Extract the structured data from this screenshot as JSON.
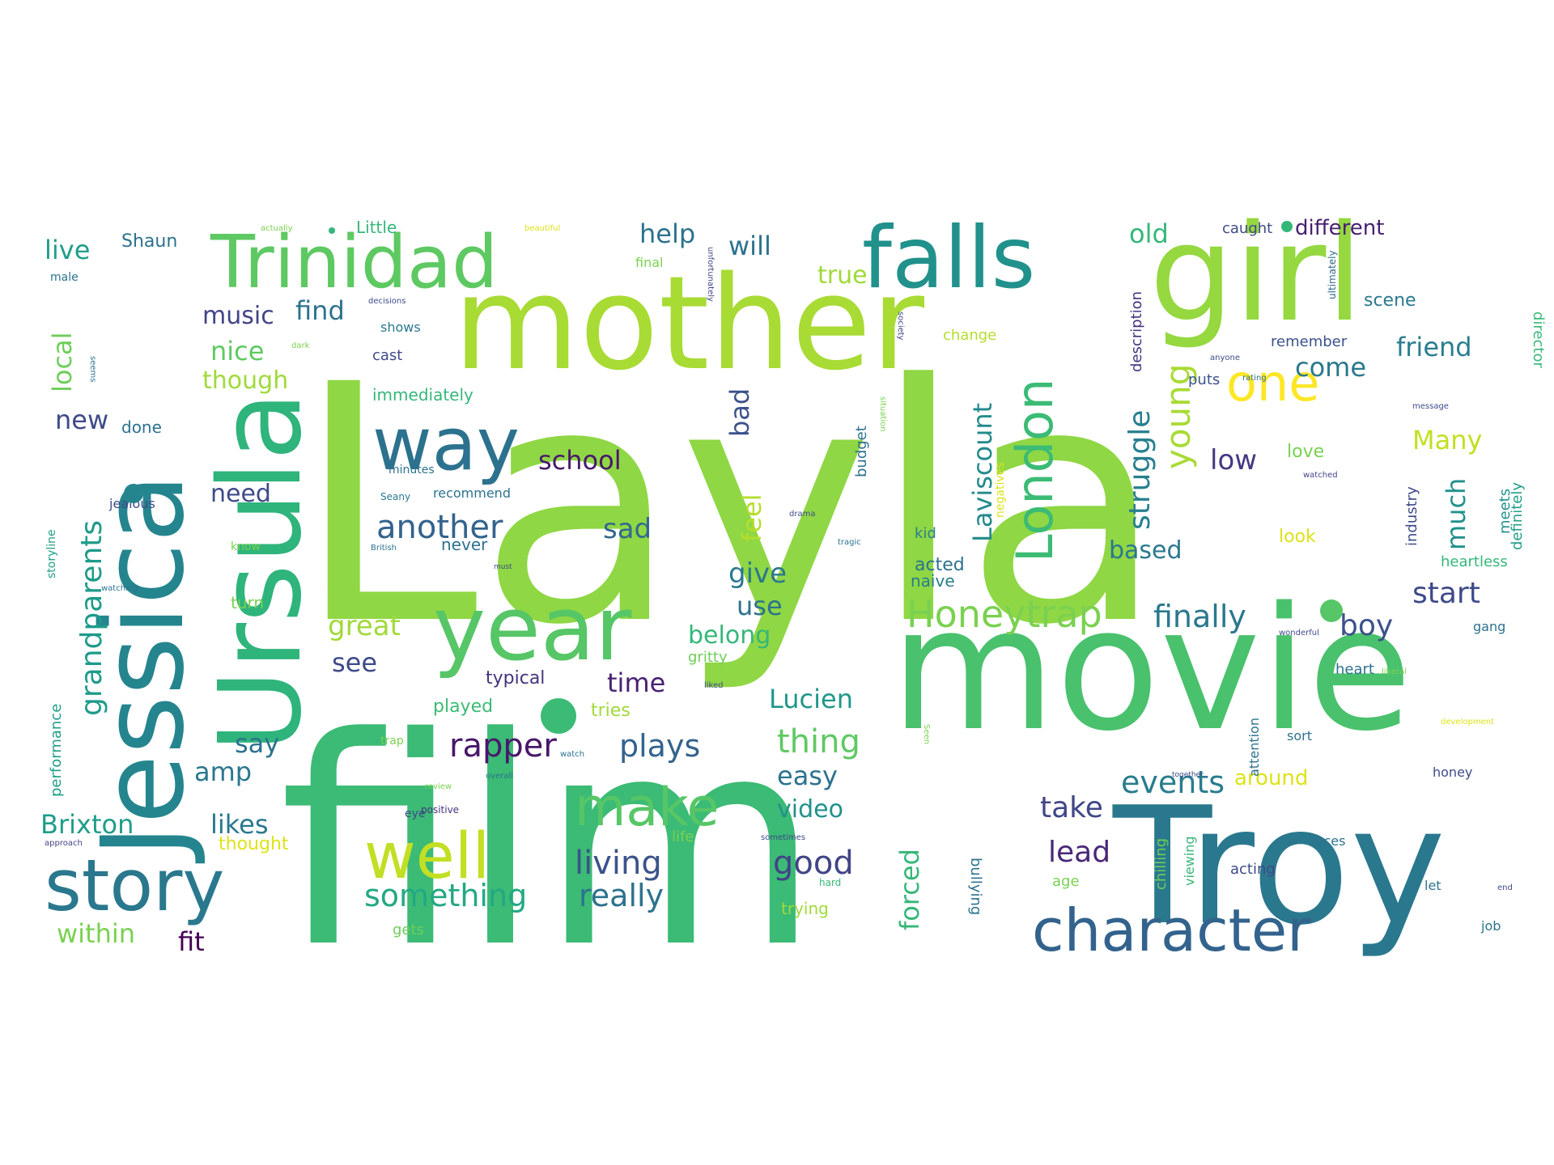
{
  "words": [
    {
      "text": "Layla",
      "color": "#8fd744"
    },
    {
      "text": "film",
      "color": "#3bbb75"
    },
    {
      "text": "movie",
      "color": "#4ac16d"
    },
    {
      "text": "mother",
      "color": "#a8db34"
    },
    {
      "text": "girl",
      "color": "#95d840"
    },
    {
      "text": "Jessica",
      "color": "#25858e"
    },
    {
      "text": "Troy",
      "color": "#2a788e"
    },
    {
      "text": "Ursula",
      "color": "#2fb47c"
    },
    {
      "text": "falls",
      "color": "#21918c"
    },
    {
      "text": "Trinidad",
      "color": "#5ec962"
    },
    {
      "text": "year",
      "color": "#56c667"
    },
    {
      "text": "way",
      "color": "#2c728e"
    },
    {
      "text": "story",
      "color": "#2a788e"
    },
    {
      "text": "character",
      "color": "#33638d"
    },
    {
      "text": "well",
      "color": "#c2df23"
    },
    {
      "text": "make",
      "color": "#56c667"
    },
    {
      "text": "one",
      "color": "#fde725"
    },
    {
      "text": "London",
      "color": "#3bbb75"
    },
    {
      "text": "Honeytrap",
      "color": "#7ad151"
    },
    {
      "text": "Laviscount",
      "color": "#238a8d"
    },
    {
      "text": "young",
      "color": "#a8db34"
    },
    {
      "text": "struggle",
      "color": "#277f8e"
    },
    {
      "text": "grandparents",
      "color": "#1e9b8a"
    },
    {
      "text": "another",
      "color": "#33638d"
    },
    {
      "text": "living",
      "color": "#3b528b"
    },
    {
      "text": "really",
      "color": "#2c728e"
    },
    {
      "text": "something",
      "color": "#22a884"
    },
    {
      "text": "rapper",
      "color": "#48186a"
    },
    {
      "text": "plays",
      "color": "#33638d"
    },
    {
      "text": "thing",
      "color": "#5ec962"
    },
    {
      "text": "events",
      "color": "#287d8e"
    },
    {
      "text": "good",
      "color": "#414487"
    },
    {
      "text": "finally",
      "color": "#2a788e"
    },
    {
      "text": "start",
      "color": "#3e4a89"
    },
    {
      "text": "boy",
      "color": "#3b528b"
    },
    {
      "text": "take",
      "color": "#404688"
    },
    {
      "text": "lead",
      "color": "#482878"
    },
    {
      "text": "Brixton",
      "color": "#1f9e89"
    },
    {
      "text": "likes",
      "color": "#2a788e"
    },
    {
      "text": "within",
      "color": "#7ad151"
    },
    {
      "text": "fit",
      "color": "#440154"
    },
    {
      "text": "amp",
      "color": "#2a788e"
    },
    {
      "text": "say",
      "color": "#2c728e"
    },
    {
      "text": "see",
      "color": "#3e4a89"
    },
    {
      "text": "great",
      "color": "#a0da39"
    },
    {
      "text": "time",
      "color": "#482173"
    },
    {
      "text": "Lucien",
      "color": "#1f988b"
    },
    {
      "text": "easy",
      "color": "#2c728e"
    },
    {
      "text": "video",
      "color": "#21918c"
    },
    {
      "text": "forced",
      "color": "#35b779"
    },
    {
      "text": "give",
      "color": "#2a788e"
    },
    {
      "text": "use",
      "color": "#2c728e"
    },
    {
      "text": "belong",
      "color": "#35b779"
    },
    {
      "text": "sad",
      "color": "#31688e"
    },
    {
      "text": "feel",
      "color": "#b5de2b"
    },
    {
      "text": "bad",
      "color": "#3b528b"
    },
    {
      "text": "need",
      "color": "#3e4a89"
    },
    {
      "text": "school",
      "color": "#48186a"
    },
    {
      "text": "new",
      "color": "#3e4a89"
    },
    {
      "text": "local",
      "color": "#6ece58"
    },
    {
      "text": "live",
      "color": "#1f9e89"
    },
    {
      "text": "music",
      "color": "#414487"
    },
    {
      "text": "find",
      "color": "#2c728e"
    },
    {
      "text": "nice",
      "color": "#5ec962"
    },
    {
      "text": "though",
      "color": "#a0da39"
    },
    {
      "text": "help",
      "color": "#2c728e"
    },
    {
      "text": "will",
      "color": "#2c728e"
    },
    {
      "text": "true",
      "color": "#a0da39"
    },
    {
      "text": "old",
      "color": "#35b779"
    },
    {
      "text": "friend",
      "color": "#287d8e"
    },
    {
      "text": "come",
      "color": "#2a788e"
    },
    {
      "text": "low",
      "color": "#443983"
    },
    {
      "text": "Many",
      "color": "#c2df23"
    },
    {
      "text": "much",
      "color": "#21918c"
    },
    {
      "text": "based",
      "color": "#2a788e"
    },
    {
      "text": "different",
      "color": "#481f70"
    },
    {
      "text": "scene",
      "color": "#2a788e"
    },
    {
      "text": "Shaun",
      "color": "#2c728e"
    },
    {
      "text": "Little",
      "color": "#35b779"
    },
    {
      "text": "immediately",
      "color": "#35b779"
    },
    {
      "text": "typical",
      "color": "#46337e"
    },
    {
      "text": "played",
      "color": "#3bbb75"
    },
    {
      "text": "tries",
      "color": "#a0da39"
    },
    {
      "text": "gritty",
      "color": "#6ece58"
    },
    {
      "text": "caught",
      "color": "#3e4a89"
    },
    {
      "text": "remember",
      "color": "#3b528b"
    },
    {
      "text": "description",
      "color": "#46337e"
    },
    {
      "text": "budget",
      "color": "#2c728e"
    },
    {
      "text": "acted",
      "color": "#2c728e"
    },
    {
      "text": "naive",
      "color": "#287d8e"
    },
    {
      "text": "kid",
      "color": "#287d8e"
    },
    {
      "text": "love",
      "color": "#7ad151"
    },
    {
      "text": "look",
      "color": "#dde318"
    },
    {
      "text": "industry",
      "color": "#3e4a89"
    },
    {
      "text": "meets",
      "color": "#21918c"
    },
    {
      "text": "definitely",
      "color": "#1f9e89"
    },
    {
      "text": "heartless",
      "color": "#35b779"
    },
    {
      "text": "director",
      "color": "#38b977"
    },
    {
      "text": "ultimately",
      "color": "#31688e"
    },
    {
      "text": "puts",
      "color": "#3b528b"
    },
    {
      "text": "change",
      "color": "#b5de2b"
    },
    {
      "text": "cast",
      "color": "#3e4a89"
    },
    {
      "text": "shows",
      "color": "#2a788e"
    },
    {
      "text": "done",
      "color": "#2c728e"
    },
    {
      "text": "minutes",
      "color": "#2c728e"
    },
    {
      "text": "Seany",
      "color": "#2a788e"
    },
    {
      "text": "recommend",
      "color": "#2c728e"
    },
    {
      "text": "never",
      "color": "#2c728e"
    },
    {
      "text": "jealous",
      "color": "#3e4a89"
    },
    {
      "text": "know",
      "color": "#7ad151"
    },
    {
      "text": "turn",
      "color": "#7ad151"
    },
    {
      "text": "performance",
      "color": "#1f9e89"
    },
    {
      "text": "storyline",
      "color": "#1f9e89"
    },
    {
      "text": "male",
      "color": "#2c728e"
    },
    {
      "text": "seems",
      "color": "#2c728e"
    },
    {
      "text": "approach",
      "color": "#414487"
    },
    {
      "text": "thought",
      "color": "#dde318"
    },
    {
      "text": "gets",
      "color": "#6ece58"
    },
    {
      "text": "trap",
      "color": "#7ad151"
    },
    {
      "text": "eye",
      "color": "#3e4a89"
    },
    {
      "text": "positive",
      "color": "#46337e"
    },
    {
      "text": "overall",
      "color": "#2c728e"
    },
    {
      "text": "review",
      "color": "#7ad151"
    },
    {
      "text": "watch",
      "color": "#2c728e"
    },
    {
      "text": "life",
      "color": "#7ad151"
    },
    {
      "text": "trying",
      "color": "#a0da39"
    },
    {
      "text": "hard",
      "color": "#35b779"
    },
    {
      "text": "bullying",
      "color": "#2c728e"
    },
    {
      "text": "chilling",
      "color": "#6ece58"
    },
    {
      "text": "viewing",
      "color": "#35b779"
    },
    {
      "text": "acting",
      "color": "#3e4a89"
    },
    {
      "text": "age",
      "color": "#7ad151"
    },
    {
      "text": "around",
      "color": "#dde318"
    },
    {
      "text": "attention",
      "color": "#2c728e"
    },
    {
      "text": "sort",
      "color": "#2c728e"
    },
    {
      "text": "heart",
      "color": "#2c728e"
    },
    {
      "text": "honey",
      "color": "#3e4a89"
    },
    {
      "text": "faces",
      "color": "#2c728e"
    },
    {
      "text": "let",
      "color": "#2c728e"
    },
    {
      "text": "job",
      "color": "#2c728e"
    },
    {
      "text": "gang",
      "color": "#2c728e"
    },
    {
      "text": "development",
      "color": "#dde318"
    },
    {
      "text": "together",
      "color": "#3e4a89"
    },
    {
      "text": "wonderful",
      "color": "#3e4a89"
    },
    {
      "text": "watching",
      "color": "#2c728e"
    },
    {
      "text": "British",
      "color": "#2c728e"
    },
    {
      "text": "tragic",
      "color": "#2c728e"
    },
    {
      "text": "drama",
      "color": "#3e4a89"
    },
    {
      "text": "must",
      "color": "#3e4a89"
    },
    {
      "text": "actually",
      "color": "#7ad151"
    },
    {
      "text": "beautiful",
      "color": "#dde318"
    },
    {
      "text": "final",
      "color": "#7ad151"
    },
    {
      "text": "unfortunately",
      "color": "#414487"
    },
    {
      "text": "decisions",
      "color": "#3e4a89"
    },
    {
      "text": "dark",
      "color": "#7ad151"
    },
    {
      "text": "society",
      "color": "#414487"
    },
    {
      "text": "situation",
      "color": "#7ad151"
    },
    {
      "text": "negatives",
      "color": "#dde318"
    },
    {
      "text": "anyone",
      "color": "#3e4a89"
    },
    {
      "text": "rating",
      "color": "#2c728e"
    },
    {
      "text": "message",
      "color": "#3e4a89"
    },
    {
      "text": "watched",
      "color": "#414487"
    },
    {
      "text": "Seen",
      "color": "#7ad151"
    },
    {
      "text": "liked",
      "color": "#3e4a89"
    },
    {
      "text": "sometimes",
      "color": "#3e4a89"
    },
    {
      "text": "liberal",
      "color": "#7ad151"
    },
    {
      "text": "end",
      "color": "#3e4a89"
    }
  ]
}
